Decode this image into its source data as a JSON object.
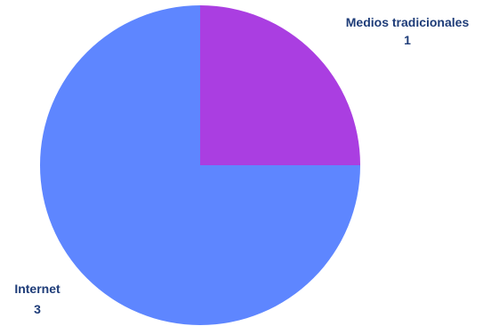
{
  "chart_data": {
    "type": "pie",
    "slices": [
      {
        "label": "Medios tradicionales",
        "value": 1,
        "color": "#aa3ee1"
      },
      {
        "label": "Internet",
        "value": 3,
        "color": "#5e86ff"
      }
    ],
    "label_color": "#1e3c78"
  }
}
